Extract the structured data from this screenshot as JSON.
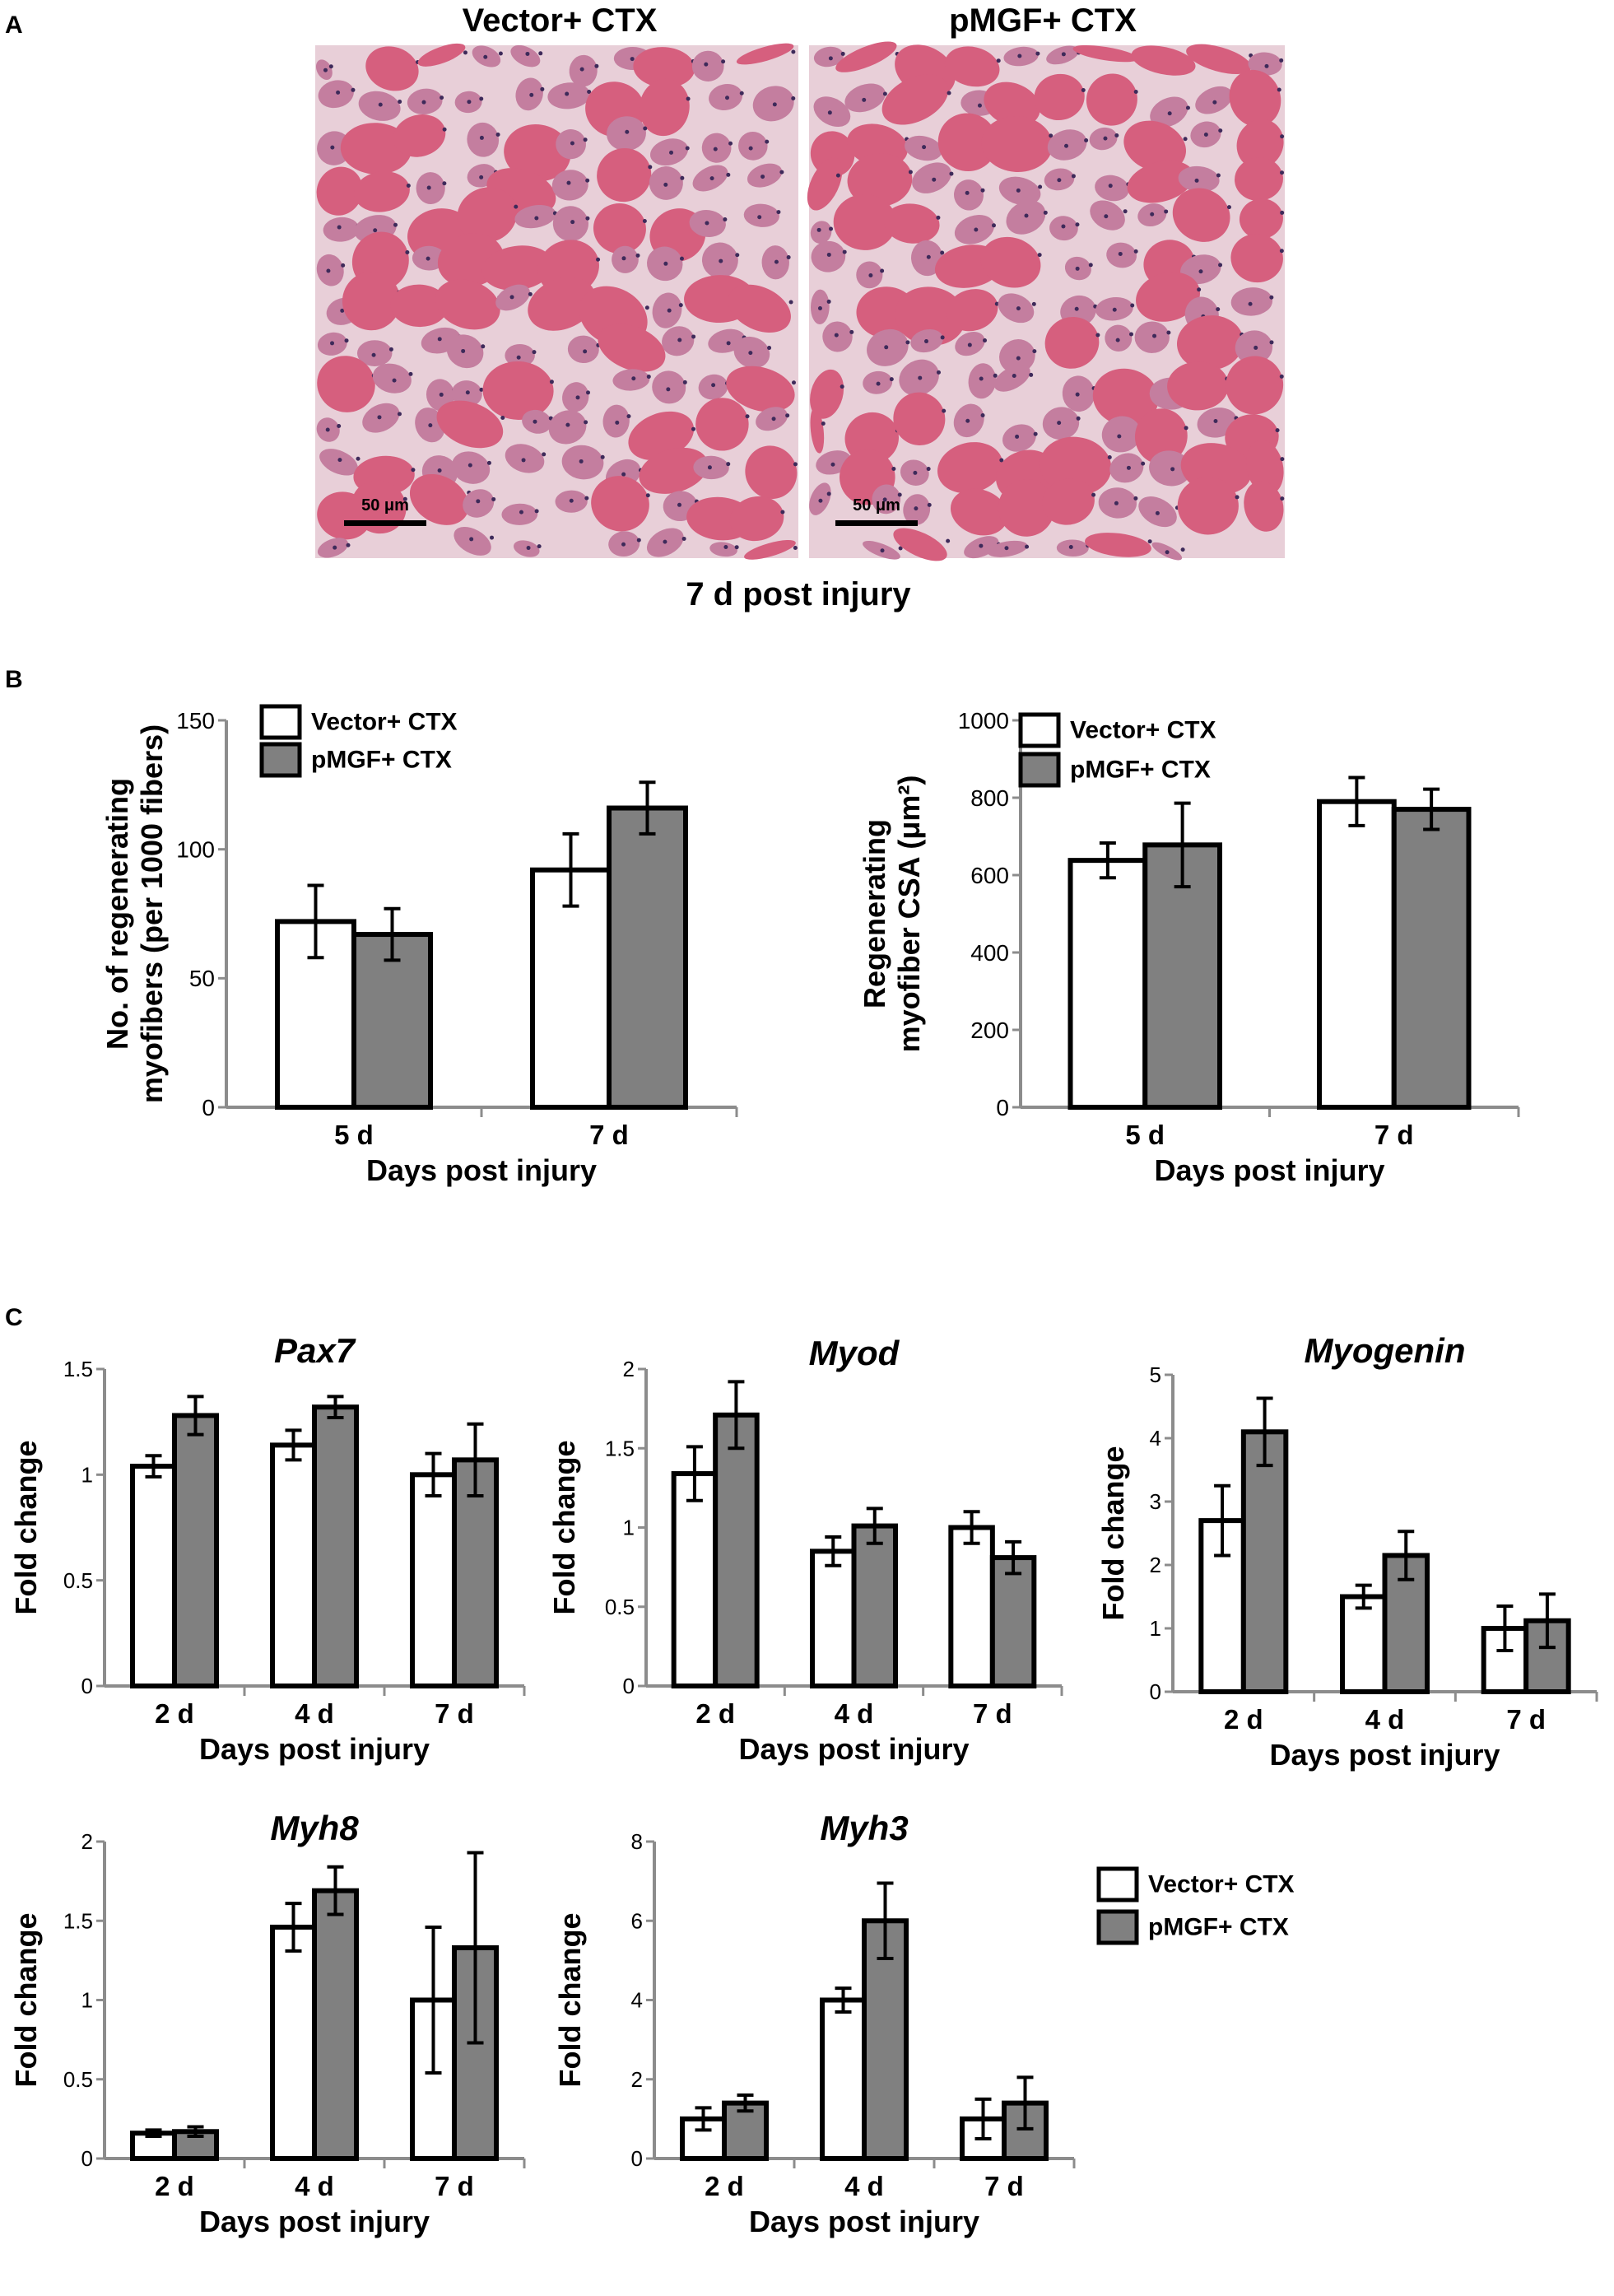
{
  "panel_a": {
    "letter": "A",
    "left_title": "Vector+ CTX",
    "right_title": "pMGF+ CTX",
    "scale_bar": "50 μm",
    "caption": "7 d post injury",
    "colors": {
      "fiber": "#d65f7e",
      "tissue": "#e8cfd8",
      "fiber_light": "#c47e9f",
      "nucleus": "#3e2a5a"
    }
  },
  "panel_b": {
    "letter": "B"
  },
  "panel_c": {
    "letter": "C"
  },
  "colors": {
    "vector": "#ffffff",
    "pmgf": "#808080",
    "outline": "#000000",
    "axis": "#8c8c8c"
  },
  "chart_data": [
    {
      "id": "b1",
      "type": "bar",
      "panel": "B",
      "title": "",
      "xlabel": "Days post injury",
      "ylabel": [
        "No. of regenerating",
        "myofibers (per 1000 fibers)"
      ],
      "categories": [
        "5 d",
        "7 d"
      ],
      "ylim": [
        0,
        150
      ],
      "yticks": [
        0,
        50,
        100,
        150
      ],
      "series": [
        {
          "name": "Vector+ CTX",
          "values": [
            72,
            92
          ],
          "errors": [
            14,
            14
          ]
        },
        {
          "name": "pMGF+ CTX",
          "values": [
            67,
            116
          ],
          "errors": [
            10,
            10
          ]
        }
      ],
      "legend": {
        "placement": "top-left",
        "entries": [
          "Vector+ CTX",
          "pMGF+ CTX"
        ]
      }
    },
    {
      "id": "b2",
      "type": "bar",
      "panel": "B",
      "title": "",
      "xlabel": "Days post injury",
      "ylabel": [
        "Regenerating",
        "myofiber CSA  (μm²)"
      ],
      "categories": [
        "5 d",
        "7 d"
      ],
      "ylim": [
        0,
        1000
      ],
      "yticks": [
        0,
        200,
        400,
        600,
        800,
        1000
      ],
      "series": [
        {
          "name": "Vector+ CTX",
          "values": [
            638,
            790
          ],
          "errors": [
            45,
            62
          ]
        },
        {
          "name": "pMGF+ CTX",
          "values": [
            678,
            770
          ],
          "errors": [
            108,
            52
          ]
        }
      ],
      "legend": {
        "placement": "top-left",
        "entries": [
          "Vector+ CTX",
          "pMGF+ CTX"
        ]
      }
    },
    {
      "id": "c1",
      "type": "bar",
      "panel": "C",
      "title": "Pax7",
      "xlabel": "Days post injury",
      "ylabel": [
        "Fold change"
      ],
      "categories": [
        "2 d",
        "4 d",
        "7 d"
      ],
      "ylim": [
        0,
        1.5
      ],
      "yticks": [
        0,
        0.5,
        1,
        1.5
      ],
      "series": [
        {
          "name": "Vector+ CTX",
          "values": [
            1.04,
            1.14,
            1.0
          ],
          "errors": [
            0.05,
            0.07,
            0.1
          ]
        },
        {
          "name": "pMGF+ CTX",
          "values": [
            1.28,
            1.32,
            1.07
          ],
          "errors": [
            0.09,
            0.05,
            0.17
          ]
        }
      ]
    },
    {
      "id": "c2",
      "type": "bar",
      "panel": "C",
      "title": "Myod",
      "xlabel": "Days post injury",
      "ylabel": [
        "Fold change"
      ],
      "categories": [
        "2 d",
        "4 d",
        "7 d"
      ],
      "ylim": [
        0,
        2
      ],
      "yticks": [
        0,
        0.5,
        1,
        1.5,
        2
      ],
      "series": [
        {
          "name": "Vector+ CTX",
          "values": [
            1.34,
            0.85,
            1.0
          ],
          "errors": [
            0.17,
            0.09,
            0.1
          ]
        },
        {
          "name": "pMGF+ CTX",
          "values": [
            1.71,
            1.01,
            0.81
          ],
          "errors": [
            0.21,
            0.11,
            0.1
          ]
        }
      ]
    },
    {
      "id": "c3",
      "type": "bar",
      "panel": "C",
      "title": "Myogenin",
      "xlabel": "Days post injury",
      "ylabel": [
        "Fold change"
      ],
      "categories": [
        "2 d",
        "4 d",
        "7 d"
      ],
      "ylim": [
        0,
        5
      ],
      "yticks": [
        0,
        1,
        2,
        3,
        4,
        5
      ],
      "series": [
        {
          "name": "Vector+ CTX",
          "values": [
            2.7,
            1.5,
            1.0
          ],
          "errors": [
            0.55,
            0.18,
            0.35
          ]
        },
        {
          "name": "pMGF+ CTX",
          "values": [
            4.1,
            2.15,
            1.12
          ],
          "errors": [
            0.53,
            0.38,
            0.42
          ]
        }
      ]
    },
    {
      "id": "c4",
      "type": "bar",
      "panel": "C",
      "title": "Myh8",
      "xlabel": "Days post injury",
      "ylabel": [
        "Fold change"
      ],
      "categories": [
        "2 d",
        "4 d",
        "7 d"
      ],
      "ylim": [
        0,
        2
      ],
      "yticks": [
        0,
        0.5,
        1,
        1.5,
        2
      ],
      "series": [
        {
          "name": "Vector+ CTX",
          "values": [
            0.16,
            1.46,
            1.0
          ],
          "errors": [
            0.02,
            0.15,
            0.46
          ]
        },
        {
          "name": "pMGF+ CTX",
          "values": [
            0.17,
            1.69,
            1.33
          ],
          "errors": [
            0.03,
            0.15,
            0.6
          ]
        }
      ]
    },
    {
      "id": "c5",
      "type": "bar",
      "panel": "C",
      "title": "Myh3",
      "xlabel": "Days post injury",
      "ylabel": [
        "Fold change"
      ],
      "categories": [
        "2 d",
        "4 d",
        "7 d"
      ],
      "ylim": [
        0,
        8
      ],
      "yticks": [
        0,
        2,
        4,
        6,
        8
      ],
      "series": [
        {
          "name": "Vector+ CTX",
          "values": [
            1.0,
            4.0,
            1.0
          ],
          "errors": [
            0.28,
            0.3,
            0.5
          ]
        },
        {
          "name": "pMGF+ CTX",
          "values": [
            1.4,
            6.0,
            1.4
          ],
          "errors": [
            0.2,
            0.95,
            0.65
          ]
        }
      ],
      "legend": {
        "placement": "right",
        "entries": [
          "Vector+ CTX",
          "pMGF+ CTX"
        ]
      }
    }
  ]
}
